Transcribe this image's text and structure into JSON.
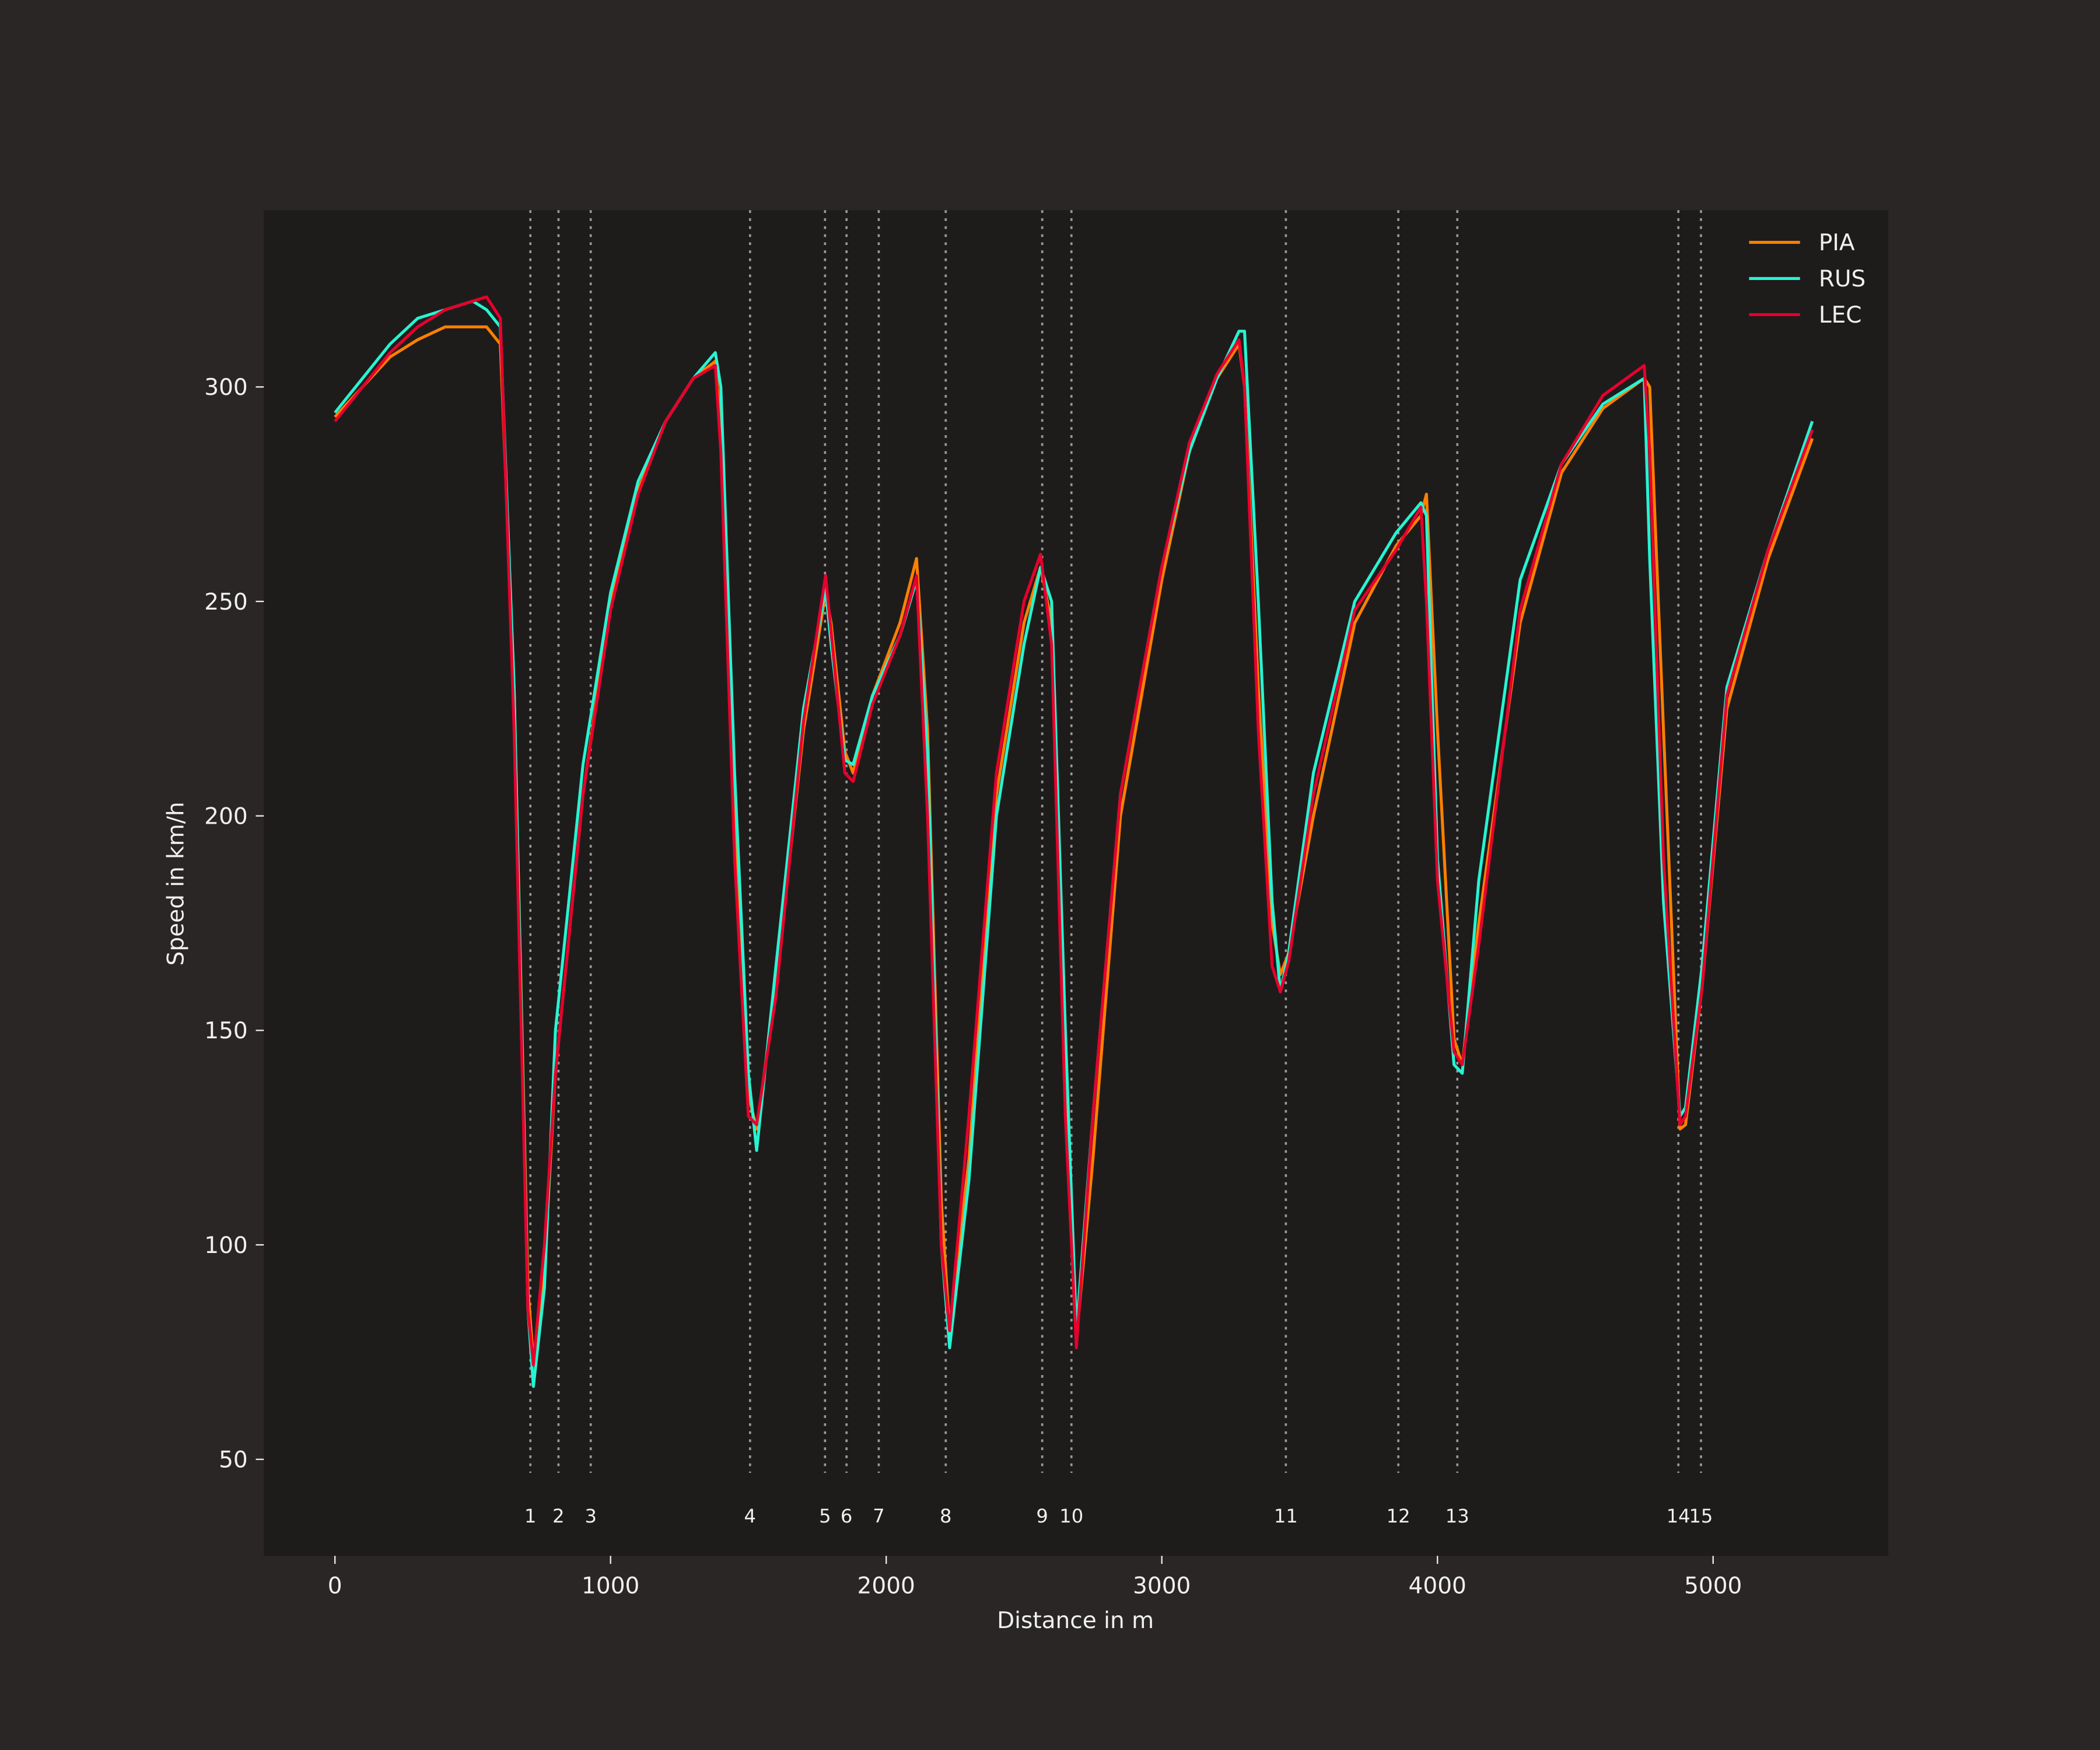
{
  "chart_data": {
    "type": "line",
    "x_label": "Distance in m",
    "y_label": "Speed in km/h",
    "xlim": [
      -258,
      5636
    ],
    "ylim": [
      27.5,
      341.2
    ],
    "xticks": [
      0,
      1000,
      2000,
      3000,
      4000,
      5000
    ],
    "yticks": [
      50,
      100,
      150,
      200,
      250,
      300
    ],
    "grid": false,
    "legend": "upper right",
    "x": [
      0,
      100,
      200,
      300,
      400,
      500,
      550,
      600,
      650,
      700,
      720,
      760,
      800,
      900,
      1000,
      1100,
      1200,
      1300,
      1380,
      1400,
      1450,
      1500,
      1530,
      1600,
      1700,
      1780,
      1800,
      1850,
      1880,
      1950,
      2050,
      2110,
      2150,
      2200,
      2230,
      2300,
      2400,
      2500,
      2560,
      2600,
      2650,
      2690,
      2750,
      2850,
      3000,
      3100,
      3200,
      3280,
      3300,
      3350,
      3400,
      3430,
      3460,
      3550,
      3700,
      3850,
      3940,
      3960,
      4000,
      4060,
      4090,
      4150,
      4300,
      4450,
      4600,
      4750,
      4770,
      4820,
      4880,
      4900,
      4960,
      5050,
      5200,
      5360
    ],
    "series": [
      {
        "name": "PIA",
        "color": "#ff8000",
        "values": [
          293,
          300,
          307,
          311,
          314,
          314,
          314,
          310,
          230,
          90,
          73,
          95,
          140,
          205,
          250,
          276,
          292,
          302,
          306,
          290,
          200,
          135,
          127,
          160,
          220,
          252,
          245,
          215,
          210,
          228,
          245,
          260,
          220,
          110,
          80,
          120,
          205,
          245,
          258,
          245,
          140,
          78,
          120,
          200,
          255,
          285,
          302,
          310,
          300,
          230,
          175,
          163,
          168,
          200,
          245,
          263,
          270,
          275,
          220,
          148,
          142,
          175,
          245,
          280,
          295,
          302,
          300,
          220,
          127,
          128,
          160,
          225,
          260,
          288
        ]
      },
      {
        "name": "RUS",
        "color": "#27f4d2",
        "values": [
          294,
          302,
          310,
          316,
          318,
          320,
          318,
          314,
          230,
          85,
          67,
          90,
          150,
          212,
          252,
          278,
          292,
          302,
          308,
          300,
          210,
          140,
          122,
          165,
          225,
          253,
          240,
          213,
          212,
          228,
          242,
          255,
          215,
          100,
          76,
          115,
          200,
          240,
          258,
          250,
          150,
          80,
          130,
          205,
          258,
          285,
          302,
          313,
          313,
          250,
          180,
          159,
          168,
          210,
          250,
          266,
          273,
          270,
          190,
          142,
          140,
          185,
          255,
          282,
          296,
          302,
          260,
          180,
          130,
          132,
          165,
          230,
          262,
          292
        ]
      },
      {
        "name": "LEC",
        "color": "#e8002d",
        "values": [
          292,
          300,
          308,
          314,
          318,
          320,
          321,
          316,
          220,
          85,
          72,
          100,
          140,
          205,
          248,
          275,
          292,
          302,
          305,
          285,
          190,
          130,
          128,
          158,
          222,
          256,
          243,
          210,
          208,
          226,
          242,
          256,
          200,
          100,
          80,
          130,
          210,
          250,
          261,
          240,
          130,
          76,
          130,
          205,
          258,
          287,
          303,
          311,
          300,
          220,
          165,
          159,
          166,
          205,
          248,
          262,
          272,
          250,
          185,
          145,
          142,
          170,
          248,
          282,
          298,
          305,
          285,
          190,
          128,
          130,
          160,
          228,
          262,
          290
        ]
      }
    ],
    "corners": [
      {
        "number": 1,
        "distance": 709
      },
      {
        "number": 2,
        "distance": 811
      },
      {
        "number": 3,
        "distance": 928
      },
      {
        "number": 4,
        "distance": 1506
      },
      {
        "number": 5,
        "distance": 1778
      },
      {
        "number": 6,
        "distance": 1856
      },
      {
        "number": 7,
        "distance": 1973
      },
      {
        "number": 8,
        "distance": 2216
      },
      {
        "number": 9,
        "distance": 2566
      },
      {
        "number": 10,
        "distance": 2672
      },
      {
        "number": 11,
        "distance": 3450
      },
      {
        "number": 12,
        "distance": 3858
      },
      {
        "number": 13,
        "distance": 4072
      },
      {
        "number": 14,
        "distance": 4874
      },
      {
        "number": 15,
        "distance": 4956
      }
    ]
  }
}
